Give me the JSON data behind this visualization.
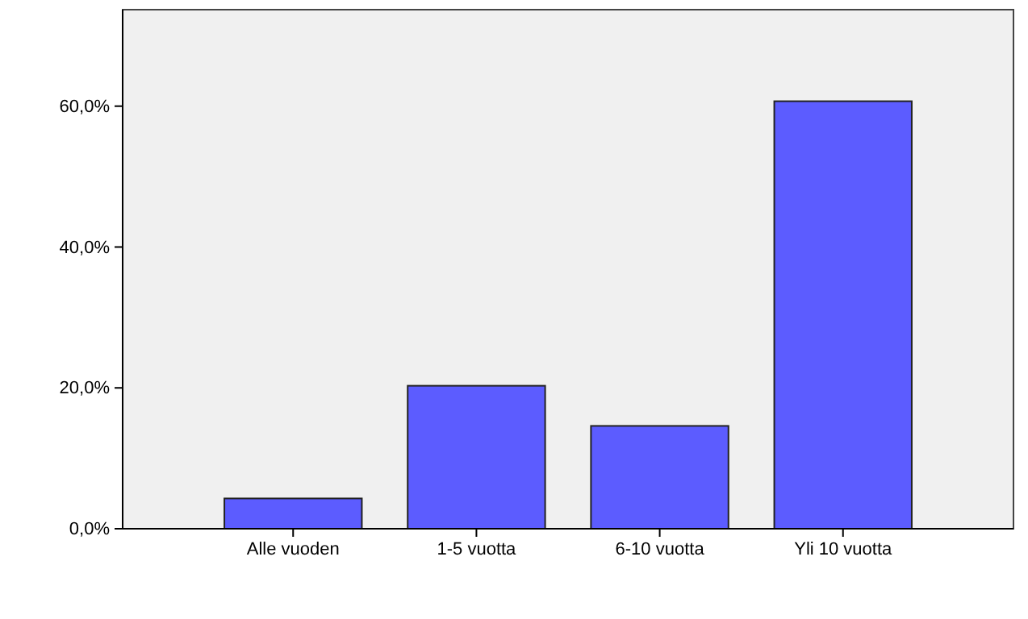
{
  "chart_data": {
    "type": "bar",
    "categories": [
      "Alle vuoden",
      "1-5 vuotta",
      "6-10 vuotta",
      "Yli 10 vuotta"
    ],
    "values": [
      4.3,
      20.3,
      14.6,
      60.7
    ],
    "color": "#5c5cff",
    "ylim": [
      0,
      73.7
    ],
    "yticks": [
      {
        "value": 0,
        "label": "0,0%"
      },
      {
        "value": 20,
        "label": "20,0%"
      },
      {
        "value": 40,
        "label": "40,0%"
      },
      {
        "value": 60,
        "label": "60,0%"
      }
    ],
    "grid": false
  }
}
